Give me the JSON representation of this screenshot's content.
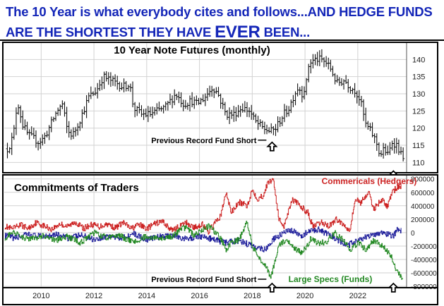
{
  "headline": {
    "line1": "The 10 Year is what everybody cites and follows...AND HEDGE FUNDS",
    "line2_a": "ARE THE SHORTEST THEY HAVE ",
    "line2_b": "EVER",
    "line2_c": " BEEN...",
    "color": "#1426b8"
  },
  "chart_data": [
    {
      "type": "bar",
      "subtype": "ohlc",
      "title": "10 Year Note Futures (monthly)",
      "ylim": [
        107,
        145
      ],
      "y_ticks": [
        110,
        115,
        120,
        125,
        130,
        135,
        140
      ],
      "x_ticks": [
        "2010",
        "2012",
        "2014",
        "2016",
        "2018",
        "2020",
        "2022"
      ],
      "xlim": [
        2008.6,
        2023.85
      ],
      "grid": true,
      "annotations": [
        {
          "text": "Previous Record Fund Short",
          "x": 2018.75,
          "y": 116.5,
          "marker": "up-arrow"
        },
        {
          "text": "",
          "x": 2023.35,
          "y": 107.5,
          "marker": "up-arrow"
        }
      ],
      "anchors": [
        [
          2008.75,
          114
        ],
        [
          2008.95,
          118
        ],
        [
          2009.1,
          128
        ],
        [
          2009.3,
          121
        ],
        [
          2009.5,
          118
        ],
        [
          2009.7,
          117
        ],
        [
          2009.9,
          116
        ],
        [
          2010.1,
          117
        ],
        [
          2010.3,
          120
        ],
        [
          2010.6,
          125
        ],
        [
          2010.8,
          127
        ],
        [
          2011.0,
          119
        ],
        [
          2011.2,
          118
        ],
        [
          2011.5,
          123
        ],
        [
          2011.8,
          129
        ],
        [
          2012.1,
          131
        ],
        [
          2012.35,
          135
        ],
        [
          2012.6,
          134
        ],
        [
          2012.9,
          133
        ],
        [
          2013.1,
          132
        ],
        [
          2013.35,
          133
        ],
        [
          2013.5,
          126
        ],
        [
          2013.8,
          124
        ],
        [
          2014.1,
          124
        ],
        [
          2014.4,
          125
        ],
        [
          2014.7,
          126
        ],
        [
          2015.0,
          129
        ],
        [
          2015.1,
          130
        ],
        [
          2015.4,
          127
        ],
        [
          2015.7,
          128
        ],
        [
          2015.9,
          127
        ],
        [
          2016.2,
          129
        ],
        [
          2016.5,
          132
        ],
        [
          2016.7,
          130
        ],
        [
          2016.85,
          127
        ],
        [
          2017.0,
          124
        ],
        [
          2017.3,
          124
        ],
        [
          2017.6,
          126
        ],
        [
          2017.9,
          125
        ],
        [
          2018.1,
          122
        ],
        [
          2018.4,
          120
        ],
        [
          2018.7,
          119
        ],
        [
          2018.9,
          120
        ],
        [
          2019.1,
          123
        ],
        [
          2019.4,
          126
        ],
        [
          2019.6,
          130
        ],
        [
          2019.75,
          132
        ],
        [
          2019.9,
          130
        ],
        [
          2020.05,
          133
        ],
        [
          2020.15,
          139
        ],
        [
          2020.4,
          140
        ],
        [
          2020.6,
          140
        ],
        [
          2020.8,
          139
        ],
        [
          2021.0,
          137
        ],
        [
          2021.2,
          133
        ],
        [
          2021.5,
          134
        ],
        [
          2021.7,
          132
        ],
        [
          2021.9,
          131
        ],
        [
          2022.1,
          128
        ],
        [
          2022.3,
          121
        ],
        [
          2022.5,
          119
        ],
        [
          2022.7,
          116
        ],
        [
          2022.85,
          112
        ],
        [
          2023.0,
          114
        ],
        [
          2023.15,
          112
        ],
        [
          2023.3,
          116
        ],
        [
          2023.5,
          115
        ],
        [
          2023.65,
          112
        ]
      ]
    },
    {
      "type": "line",
      "title": "Commitments of Traders",
      "ylim": [
        -820000,
        860000
      ],
      "y_ticks": [
        -800000,
        -600000,
        -400000,
        -200000,
        0,
        200000,
        400000,
        600000,
        800000
      ],
      "y_tick_labels": [
        "-800000",
        "-600000",
        "-400000",
        "-200000",
        "0",
        "200000",
        "400000",
        "600000",
        "800000"
      ],
      "x_ticks": [
        "2010",
        "2012",
        "2014",
        "2016",
        "2018",
        "2020",
        "2022"
      ],
      "xlim": [
        2008.6,
        2023.85
      ],
      "grid": true,
      "annotations": [
        {
          "text": "Previous Record Fund Short",
          "x": 2018.75,
          "y": -760000,
          "marker": "up-arrow"
        },
        {
          "text": "",
          "x": 2023.35,
          "y": -820000,
          "marker": "up-arrow"
        }
      ],
      "series": [
        {
          "name": "Commericals (Hedgers)",
          "color": "#cc2222",
          "anchors": [
            [
              2008.6,
              100000
            ],
            [
              2008.9,
              50000
            ],
            [
              2009.2,
              120000
            ],
            [
              2009.5,
              60000
            ],
            [
              2009.8,
              150000
            ],
            [
              2010.1,
              100000
            ],
            [
              2010.4,
              50000
            ],
            [
              2010.7,
              130000
            ],
            [
              2011.0,
              90000
            ],
            [
              2011.3,
              160000
            ],
            [
              2011.6,
              60000
            ],
            [
              2011.9,
              120000
            ],
            [
              2012.2,
              90000
            ],
            [
              2012.5,
              130000
            ],
            [
              2012.8,
              70000
            ],
            [
              2013.1,
              150000
            ],
            [
              2013.4,
              60000
            ],
            [
              2013.7,
              120000
            ],
            [
              2014.0,
              60000
            ],
            [
              2014.3,
              130000
            ],
            [
              2014.6,
              170000
            ],
            [
              2014.9,
              40000
            ],
            [
              2015.2,
              80000
            ],
            [
              2015.5,
              150000
            ],
            [
              2015.8,
              70000
            ],
            [
              2016.1,
              130000
            ],
            [
              2016.3,
              0
            ],
            [
              2016.5,
              100000
            ],
            [
              2016.8,
              250000
            ],
            [
              2017.0,
              600000
            ],
            [
              2017.2,
              300000
            ],
            [
              2017.5,
              450000
            ],
            [
              2017.8,
              400000
            ],
            [
              2018.0,
              640000
            ],
            [
              2018.2,
              500000
            ],
            [
              2018.4,
              550000
            ],
            [
              2018.6,
              750000
            ],
            [
              2018.8,
              800000
            ],
            [
              2019.0,
              200000
            ],
            [
              2019.2,
              100000
            ],
            [
              2019.5,
              500000
            ],
            [
              2019.8,
              400000
            ],
            [
              2020.1,
              300000
            ],
            [
              2020.3,
              80000
            ],
            [
              2020.6,
              150000
            ],
            [
              2020.9,
              100000
            ],
            [
              2021.2,
              200000
            ],
            [
              2021.5,
              100000
            ],
            [
              2021.7,
              50000
            ],
            [
              2021.9,
              500000
            ],
            [
              2022.1,
              450000
            ],
            [
              2022.4,
              600000
            ],
            [
              2022.6,
              350000
            ],
            [
              2022.9,
              500000
            ],
            [
              2023.1,
              380000
            ],
            [
              2023.3,
              600000
            ],
            [
              2023.5,
              680000
            ],
            [
              2023.65,
              700000
            ]
          ]
        },
        {
          "name": "",
          "color": "#1a1a99",
          "anchors": [
            [
              2008.6,
              -50000
            ],
            [
              2009.0,
              -80000
            ],
            [
              2009.5,
              -30000
            ],
            [
              2010.0,
              -60000
            ],
            [
              2010.5,
              -20000
            ],
            [
              2011.0,
              -80000
            ],
            [
              2011.5,
              -40000
            ],
            [
              2012.0,
              -100000
            ],
            [
              2012.5,
              -50000
            ],
            [
              2013.0,
              -80000
            ],
            [
              2013.5,
              -20000
            ],
            [
              2014.0,
              -100000
            ],
            [
              2014.5,
              -60000
            ],
            [
              2015.0,
              -40000
            ],
            [
              2015.5,
              -100000
            ],
            [
              2016.0,
              -50000
            ],
            [
              2016.5,
              -100000
            ],
            [
              2017.0,
              -150000
            ],
            [
              2017.5,
              -120000
            ],
            [
              2018.0,
              -200000
            ],
            [
              2018.5,
              -250000
            ],
            [
              2018.8,
              -100000
            ],
            [
              2019.2,
              0
            ],
            [
              2019.5,
              30000
            ],
            [
              2019.8,
              -50000
            ],
            [
              2020.2,
              20000
            ],
            [
              2020.5,
              50000
            ],
            [
              2020.8,
              -20000
            ],
            [
              2021.2,
              -100000
            ],
            [
              2021.6,
              -200000
            ],
            [
              2021.9,
              -120000
            ],
            [
              2022.2,
              -80000
            ],
            [
              2022.5,
              -50000
            ],
            [
              2022.8,
              0
            ],
            [
              2023.1,
              -20000
            ],
            [
              2023.35,
              -50000
            ],
            [
              2023.5,
              50000
            ],
            [
              2023.65,
              30000
            ]
          ]
        },
        {
          "name": "Large Specs (Funds)",
          "color": "#228822",
          "anchors": [
            [
              2008.6,
              -80000
            ],
            [
              2009.0,
              0
            ],
            [
              2009.5,
              -100000
            ],
            [
              2010.0,
              -50000
            ],
            [
              2010.5,
              -120000
            ],
            [
              2011.0,
              -60000
            ],
            [
              2011.5,
              -150000
            ],
            [
              2012.0,
              0
            ],
            [
              2012.5,
              -80000
            ],
            [
              2013.0,
              -50000
            ],
            [
              2013.5,
              -150000
            ],
            [
              2014.0,
              -50000
            ],
            [
              2014.5,
              -100000
            ],
            [
              2015.0,
              -50000
            ],
            [
              2015.3,
              50000
            ],
            [
              2015.5,
              80000
            ],
            [
              2015.8,
              -50000
            ],
            [
              2016.1,
              50000
            ],
            [
              2016.4,
              100000
            ],
            [
              2016.8,
              -100000
            ],
            [
              2017.0,
              -250000
            ],
            [
              2017.2,
              -150000
            ],
            [
              2017.5,
              -100000
            ],
            [
              2017.8,
              150000
            ],
            [
              2018.0,
              -200000
            ],
            [
              2018.2,
              -350000
            ],
            [
              2018.5,
              -500000
            ],
            [
              2018.7,
              -680000
            ],
            [
              2019.0,
              -200000
            ],
            [
              2019.3,
              -100000
            ],
            [
              2019.6,
              -250000
            ],
            [
              2019.9,
              -300000
            ],
            [
              2020.2,
              -100000
            ],
            [
              2020.5,
              -150000
            ],
            [
              2020.8,
              -150000
            ],
            [
              2021.1,
              0
            ],
            [
              2021.4,
              -100000
            ],
            [
              2021.7,
              -250000
            ],
            [
              2022.0,
              -150000
            ],
            [
              2022.3,
              -250000
            ],
            [
              2022.6,
              -120000
            ],
            [
              2022.9,
              -200000
            ],
            [
              2023.2,
              -300000
            ],
            [
              2023.4,
              -500000
            ],
            [
              2023.6,
              -650000
            ],
            [
              2023.7,
              -680000
            ]
          ]
        }
      ]
    }
  ]
}
